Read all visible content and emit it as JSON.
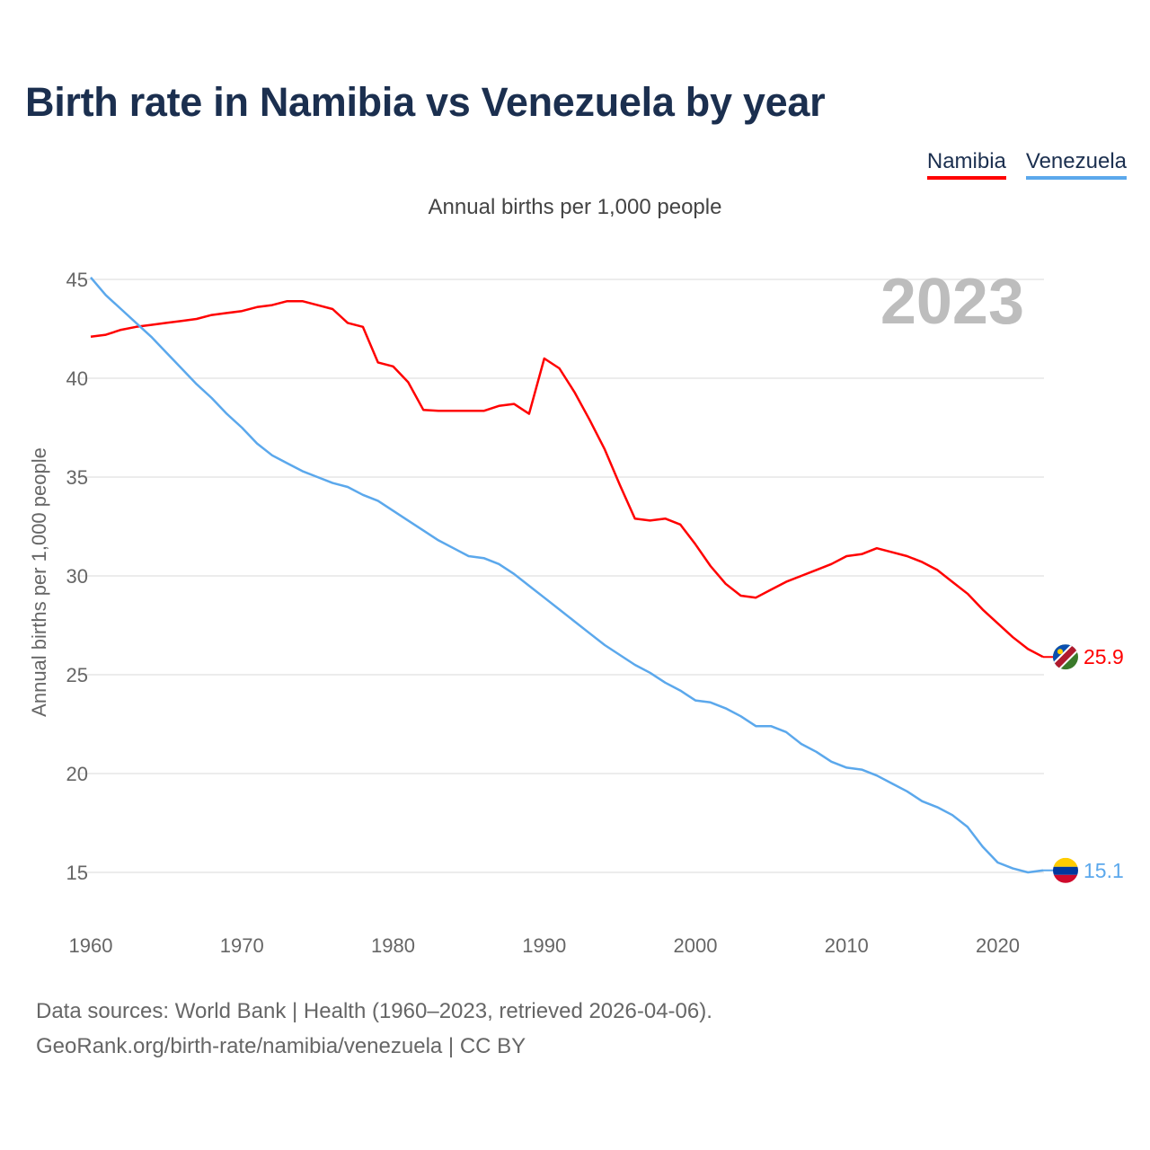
{
  "title": "Birth rate in Namibia vs Venezuela by year",
  "subtitle": "Annual births per 1,000 people",
  "year_watermark": "2023",
  "footer": {
    "line1": "Data sources: World Bank | Health (1960–2023, retrieved 2026-04-06).",
    "line2": "GeoRank.org/birth-rate/namibia/venezuela | CC BY"
  },
  "chart_data": {
    "type": "line",
    "title": "Birth rate in Namibia vs Venezuela by year",
    "xlabel": "",
    "ylabel": "Annual births per 1,000 people",
    "xlim": [
      1960,
      2023
    ],
    "ylim": [
      15,
      45
    ],
    "yticks": [
      15,
      20,
      25,
      30,
      35,
      40,
      45
    ],
    "xticks": [
      1960,
      1970,
      1980,
      1990,
      2000,
      2010,
      2020
    ],
    "grid": true,
    "legend_placement": "top-right",
    "x": [
      1960,
      1961,
      1962,
      1963,
      1964,
      1965,
      1966,
      1967,
      1968,
      1969,
      1970,
      1971,
      1972,
      1973,
      1974,
      1975,
      1976,
      1977,
      1978,
      1979,
      1980,
      1981,
      1982,
      1983,
      1984,
      1985,
      1986,
      1987,
      1988,
      1989,
      1990,
      1991,
      1992,
      1993,
      1994,
      1995,
      1996,
      1997,
      1998,
      1999,
      2000,
      2001,
      2002,
      2003,
      2004,
      2005,
      2006,
      2007,
      2008,
      2009,
      2010,
      2011,
      2012,
      2013,
      2014,
      2015,
      2016,
      2017,
      2018,
      2019,
      2020,
      2021,
      2022,
      2023
    ],
    "series": [
      {
        "name": "Namibia",
        "color": "#ff0000",
        "end_label": "25.9",
        "values": [
          42.1,
          42.2,
          42.45,
          42.6,
          42.7,
          42.8,
          42.9,
          43.0,
          43.2,
          43.3,
          43.4,
          43.6,
          43.7,
          43.9,
          43.9,
          43.7,
          43.5,
          42.8,
          42.6,
          40.8,
          40.6,
          39.8,
          38.4,
          38.35,
          38.35,
          38.35,
          38.35,
          38.6,
          38.7,
          38.2,
          41.0,
          40.5,
          39.3,
          37.9,
          36.4,
          34.6,
          32.9,
          32.8,
          32.9,
          32.6,
          31.6,
          30.5,
          29.6,
          29.0,
          28.9,
          29.3,
          29.7,
          30.0,
          30.3,
          30.6,
          31.0,
          31.1,
          31.4,
          31.2,
          31.0,
          30.7,
          30.3,
          29.7,
          29.1,
          28.3,
          27.6,
          26.9,
          26.3,
          25.9
        ]
      },
      {
        "name": "Venezuela",
        "color": "#5ba8ec",
        "end_label": "15.1",
        "values": [
          45.1,
          44.2,
          43.5,
          42.8,
          42.1,
          41.3,
          40.5,
          39.7,
          39.0,
          38.2,
          37.5,
          36.7,
          36.1,
          35.7,
          35.3,
          35.0,
          34.7,
          34.5,
          34.1,
          33.8,
          33.3,
          32.8,
          32.3,
          31.8,
          31.4,
          31.0,
          30.9,
          30.6,
          30.1,
          29.5,
          28.9,
          28.3,
          27.7,
          27.1,
          26.5,
          26.0,
          25.5,
          25.1,
          24.6,
          24.2,
          23.7,
          23.6,
          23.3,
          22.9,
          22.4,
          22.4,
          22.1,
          21.5,
          21.1,
          20.6,
          20.3,
          20.2,
          19.9,
          19.5,
          19.1,
          18.6,
          18.3,
          17.9,
          17.3,
          16.3,
          15.5,
          15.2,
          15.0,
          15.1
        ]
      }
    ]
  }
}
